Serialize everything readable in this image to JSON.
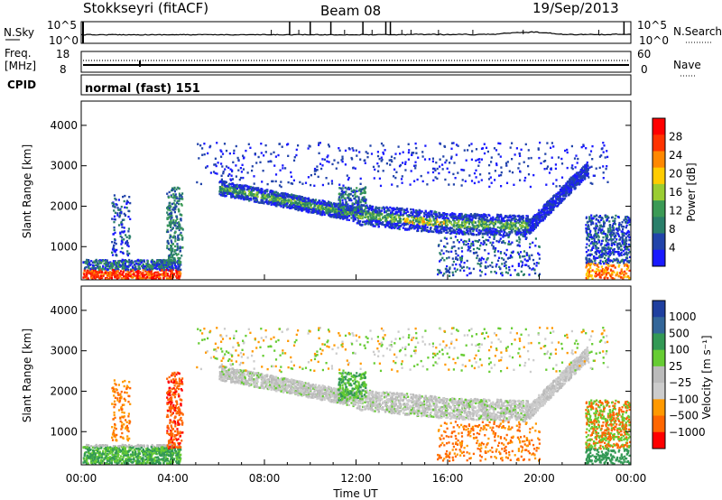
{
  "header": {
    "station": "Stokkseyri (fitACF)",
    "beam": "Beam 08",
    "date": "19/Sep/2013"
  },
  "panels": {
    "nsky_label": "N.Sky",
    "nsky_ticks": [
      "10^5",
      "10^0"
    ],
    "nsky_right_ticks": [
      "10^5",
      "10^0"
    ],
    "nsearch_label": "N.Search",
    "freq_label_1": "Freq.",
    "freq_label_2": "[MHz]",
    "freq_ticks": [
      "18",
      "8"
    ],
    "nave_ticks": [
      "60",
      "0"
    ],
    "nave_label": "Nave",
    "cpid_label": "CPID",
    "cpid_text": "normal (fast) 151"
  },
  "colors": {
    "power": [
      "#1a1aff",
      "#2244aa",
      "#2a7f6a",
      "#3b9a55",
      "#9acd32",
      "#ffcc00",
      "#ff8800",
      "#ff3300",
      "#ff0000"
    ],
    "velocity": [
      "#ff0000",
      "#ff6600",
      "#ff9900",
      "#cccccc",
      "#bbbbbb",
      "#66cc33",
      "#339955",
      "#336699",
      "#1f3f9f"
    ],
    "ground": "#999999"
  },
  "chart_data": [
    {
      "type": "heatmap",
      "name": "power",
      "title": "",
      "ylabel": "Slant Range [km]",
      "ylim": [
        180,
        4600
      ],
      "yticks": [
        "1000",
        "2000",
        "3000",
        "4000"
      ],
      "xlim_hours": [
        0,
        24
      ],
      "colorbar_label": "Power [dB]",
      "colorbar_ticks": [
        "4",
        "8",
        "12",
        "16",
        "20",
        "24",
        "28"
      ],
      "colorbar_range": [
        0,
        30
      ]
    },
    {
      "type": "heatmap",
      "name": "velocity",
      "title": "",
      "xlabel": "Time UT",
      "ylabel": "Slant Range [km]",
      "ylim": [
        180,
        4600
      ],
      "yticks": [
        "1000",
        "2000",
        "3000",
        "4000"
      ],
      "xticks": [
        "00:00",
        "04:00",
        "08:00",
        "12:00",
        "16:00",
        "20:00",
        "00:00"
      ],
      "xlim_hours": [
        0,
        24
      ],
      "colorbar_label": "Velocity [m s⁻¹]",
      "colorbar_ticks": [
        "1000",
        "500",
        "100",
        "25",
        "−25",
        "−100",
        "−500",
        "−1000"
      ]
    }
  ]
}
